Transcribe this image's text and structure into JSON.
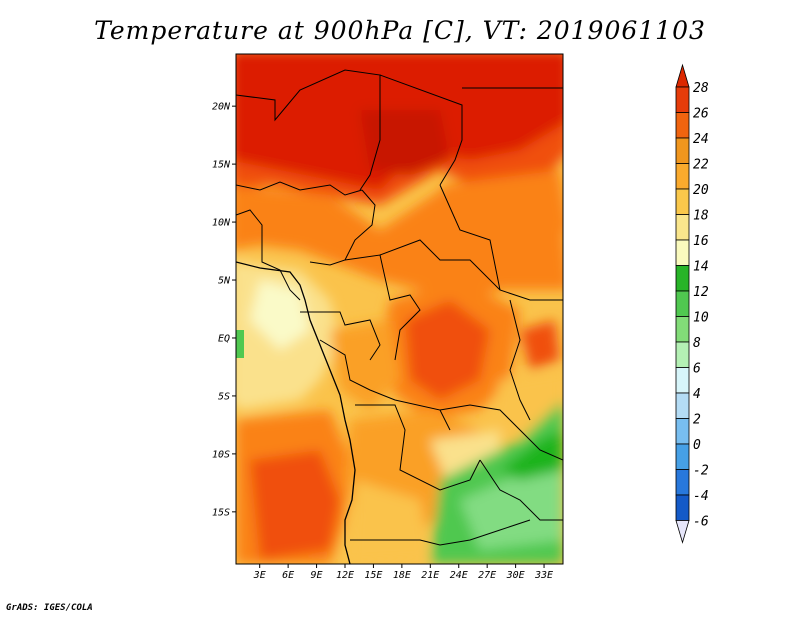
{
  "title": "Temperature at 900hPa [C], VT: 2019061103",
  "footer": "GrADS: IGES/COLA",
  "map": {
    "lat_labels": [
      "20N",
      "15N",
      "10N",
      "5N",
      "EQ",
      "5S",
      "10S",
      "15S"
    ],
    "lon_labels": [
      "3E",
      "6E",
      "9E",
      "12E",
      "15E",
      "18E",
      "21E",
      "24E",
      "27E",
      "30E",
      "33E"
    ],
    "lat_values": [
      20,
      15,
      10,
      5,
      0,
      -5,
      -10,
      -15
    ],
    "lon_values": [
      3,
      6,
      9,
      12,
      15,
      18,
      21,
      24,
      27,
      30,
      33
    ],
    "lon_range": [
      0.5,
      35
    ],
    "lat_range": [
      -19.5,
      24.5
    ]
  },
  "colorbar": {
    "labels": [
      "28",
      "26",
      "24",
      "22",
      "20",
      "18",
      "16",
      "14",
      "12",
      "10",
      "8",
      "6",
      "4",
      "2",
      "0",
      "-2",
      "-4",
      "-6"
    ],
    "colors": [
      "#a50000",
      "#dc1e00",
      "#f04f0a",
      "#fa8214",
      "#faa028",
      "#fac34b",
      "#fae18c",
      "#fafac8",
      "#1eb41e",
      "#50c850",
      "#82dc82",
      "#b4f0b4",
      "#dcf0fa",
      "#b4dcf0",
      "#78b9f0",
      "#3c96e6",
      "#1e6edc",
      "#1450c8",
      "#0a3296",
      "#0a0a6e",
      "#e6e6fa"
    ],
    "bar_colors": [
      "#dc2800",
      "#e63c0a",
      "#f0640f",
      "#f0961e",
      "#faaa2d",
      "#fac84b",
      "#fae68c",
      "#fafabe",
      "#28b428",
      "#50c850",
      "#82dc78",
      "#b4f0b4",
      "#d7f5fa",
      "#b4dcf5",
      "#78bef0",
      "#46a0e6",
      "#2878dc",
      "#145ac8",
      "#0a3ca0",
      "#0a0a6e"
    ],
    "top_tip_color": "#dc2800",
    "bottom_tip_color": "#e6e6fa"
  }
}
